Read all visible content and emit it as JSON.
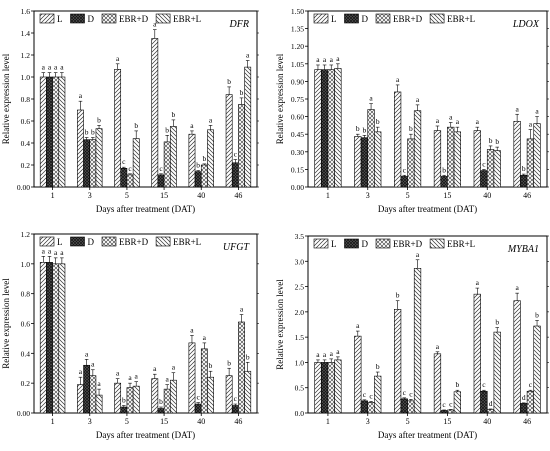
{
  "chart_data": [
    {
      "type": "bar",
      "title": "DFR",
      "xlabel": "Days after treatment (DAT)",
      "ylabel": "Relative expression level",
      "ylim": [
        0,
        1.6
      ],
      "yticks": [
        "0.00",
        "0.2",
        "0.4",
        "0.6",
        "0.8",
        "1.0",
        "1.2",
        "1.4",
        "1.6"
      ],
      "categories": [
        "1",
        "3",
        "5",
        "15",
        "40",
        "46"
      ],
      "legend": "top-left",
      "series": [
        {
          "name": "L",
          "values": [
            1.0,
            0.7,
            1.07,
            1.35,
            0.48,
            0.84
          ],
          "errors": [
            0.04,
            0.08,
            0.05,
            0.08,
            0.03,
            0.07
          ],
          "letters": [
            "a",
            "a",
            "a",
            "a",
            "a",
            "b"
          ]
        },
        {
          "name": "D",
          "values": [
            1.0,
            0.43,
            0.17,
            0.11,
            0.14,
            0.22
          ],
          "errors": [
            0.04,
            0.02,
            0.01,
            0.01,
            0.01,
            0.03
          ],
          "letters": [
            "a",
            "b",
            "c",
            "c",
            "b",
            "c"
          ]
        },
        {
          "name": "EBR+D",
          "values": [
            1.0,
            0.43,
            0.11,
            0.41,
            0.2,
            0.75
          ],
          "errors": [
            0.04,
            0.02,
            0.01,
            0.06,
            0.01,
            0.06
          ],
          "letters": [
            "a",
            "b",
            "c",
            "b",
            "b",
            "b"
          ]
        },
        {
          "name": "EBR+L",
          "values": [
            1.0,
            0.53,
            0.44,
            0.55,
            0.52,
            1.09
          ],
          "errors": [
            0.04,
            0.03,
            0.07,
            0.06,
            0.04,
            0.06
          ],
          "letters": [
            "a",
            "b",
            "b",
            "b",
            "a",
            "a"
          ]
        }
      ]
    },
    {
      "type": "bar",
      "title": "LDOX",
      "xlabel": "Days after treatment (DAT)",
      "ylabel": "Relative expression level",
      "ylim": [
        0,
        1.5
      ],
      "yticks": [
        "0.00",
        "0.15",
        "0.30",
        "0.45",
        "0.60",
        "0.75",
        "0.90",
        "1.05",
        "1.20",
        "1.35",
        "1.50"
      ],
      "categories": [
        "1",
        "3",
        "5",
        "15",
        "40",
        "46"
      ],
      "legend": "top-left",
      "series": [
        {
          "name": "L",
          "values": [
            1.0,
            0.43,
            0.81,
            0.48,
            0.48,
            0.56
          ],
          "errors": [
            0.04,
            0.02,
            0.06,
            0.04,
            0.03,
            0.06
          ],
          "letters": [
            "a",
            "b",
            "a",
            "a",
            "a",
            "a"
          ]
        },
        {
          "name": "D",
          "values": [
            1.0,
            0.42,
            0.09,
            0.09,
            0.14,
            0.1
          ],
          "errors": [
            0.04,
            0.02,
            0.01,
            0.01,
            0.01,
            0.01
          ],
          "letters": [
            "a",
            "b",
            "c",
            "b",
            "c",
            "b"
          ]
        },
        {
          "name": "EBR+D",
          "values": [
            1.0,
            0.66,
            0.41,
            0.51,
            0.32,
            0.41
          ],
          "errors": [
            0.04,
            0.05,
            0.04,
            0.04,
            0.03,
            0.08
          ],
          "letters": [
            "a",
            "a",
            "b",
            "a",
            "b",
            "a"
          ]
        },
        {
          "name": "EBR+L",
          "values": [
            1.01,
            0.47,
            0.65,
            0.47,
            0.31,
            0.54
          ],
          "errors": [
            0.04,
            0.04,
            0.05,
            0.04,
            0.03,
            0.06
          ],
          "letters": [
            "a",
            "b",
            "a",
            "a",
            "b",
            "a"
          ]
        }
      ]
    },
    {
      "type": "bar",
      "title": "UFGT",
      "xlabel": "Days after treatment (DAT)",
      "ylabel": "Relative expression level",
      "ylim": [
        0,
        1.2
      ],
      "yticks": [
        "0.00",
        "0.2",
        "0.4",
        "0.6",
        "0.8",
        "1.0",
        "1.2"
      ],
      "categories": [
        "1",
        "3",
        "5",
        "15",
        "40",
        "46"
      ],
      "legend": "top-left",
      "series": [
        {
          "name": "L",
          "values": [
            1.01,
            0.19,
            0.2,
            0.23,
            0.47,
            0.25
          ],
          "errors": [
            0.04,
            0.05,
            0.03,
            0.03,
            0.05,
            0.05
          ],
          "letters": [
            "a",
            "a",
            "a",
            "a",
            "a",
            "b"
          ]
        },
        {
          "name": "D",
          "values": [
            1.01,
            0.32,
            0.04,
            0.03,
            0.06,
            0.05
          ],
          "errors": [
            0.04,
            0.04,
            0.01,
            0.01,
            0.01,
            0.01
          ],
          "letters": [
            "a",
            "a",
            "b",
            "b",
            "c",
            "c"
          ]
        },
        {
          "name": "EBR+D",
          "values": [
            1.0,
            0.25,
            0.17,
            0.16,
            0.43,
            0.61
          ],
          "errors": [
            0.04,
            0.04,
            0.03,
            0.03,
            0.04,
            0.05
          ],
          "letters": [
            "a",
            "a",
            "a",
            "a",
            "a",
            "a"
          ]
        },
        {
          "name": "EBR+L",
          "values": [
            1.0,
            0.12,
            0.18,
            0.22,
            0.24,
            0.28
          ],
          "errors": [
            0.04,
            0.04,
            0.03,
            0.05,
            0.04,
            0.06
          ],
          "letters": [
            "a",
            "a",
            "a",
            "a",
            "b",
            "b"
          ]
        }
      ]
    },
    {
      "type": "bar",
      "title": "MYBA1",
      "xlabel": "Days after treatment (DAT)",
      "ylabel": "Relative expression level",
      "ylim": [
        0,
        3.5
      ],
      "yticks": [
        "0.0",
        "0.5",
        "1.0",
        "1.5",
        "2.0",
        "2.5",
        "3.0",
        "3.5"
      ],
      "categories": [
        "1",
        "3",
        "5",
        "15",
        "40",
        "46"
      ],
      "legend": "top-left",
      "series": [
        {
          "name": "L",
          "values": [
            1.0,
            1.52,
            2.05,
            1.17,
            2.35,
            2.22
          ],
          "errors": [
            0.05,
            0.1,
            0.17,
            0.04,
            0.12,
            0.15
          ],
          "letters": [
            "a",
            "a",
            "b",
            "a",
            "a",
            "a"
          ]
        },
        {
          "name": "D",
          "values": [
            1.0,
            0.24,
            0.28,
            0.05,
            0.43,
            0.19
          ],
          "errors": [
            0.05,
            0.02,
            0.02,
            0.01,
            0.02,
            0.01
          ],
          "letters": [
            "a",
            "c",
            "c",
            "c",
            "c",
            "d"
          ]
        },
        {
          "name": "EBR+D",
          "values": [
            1.0,
            0.21,
            0.24,
            0.06,
            0.07,
            0.43
          ],
          "errors": [
            0.07,
            0.02,
            0.03,
            0.01,
            0.01,
            0.02
          ],
          "letters": [
            "a",
            "c",
            "c",
            "c",
            "d",
            "c"
          ]
        },
        {
          "name": "EBR+L",
          "values": [
            1.05,
            0.73,
            2.86,
            0.42,
            1.6,
            1.72
          ],
          "errors": [
            0.06,
            0.08,
            0.17,
            0.03,
            0.09,
            0.11
          ],
          "letters": [
            "a",
            "b",
            "a",
            "b",
            "b",
            "b"
          ]
        }
      ]
    }
  ]
}
